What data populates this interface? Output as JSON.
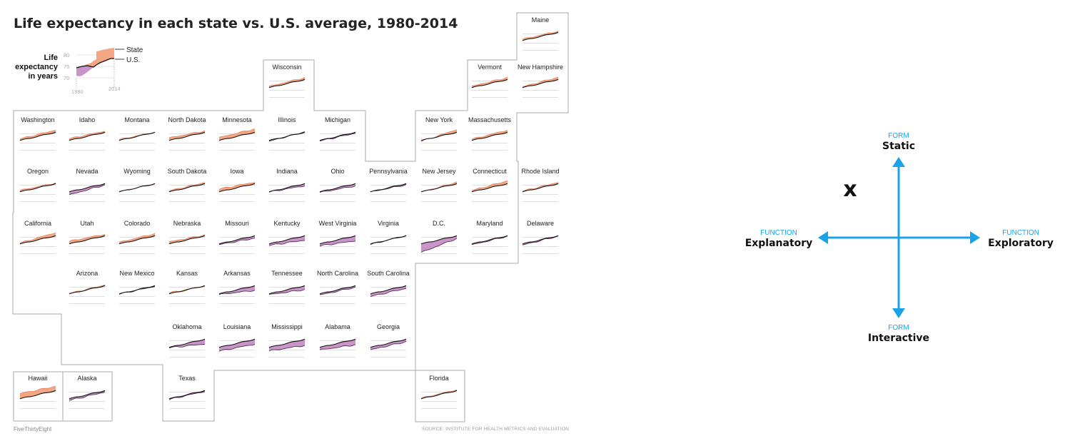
{
  "chart_data": {
    "type": "line",
    "title": "Life expectancy in each state vs. U.S. average, 1980-2014",
    "legend": {
      "ylabel": [
        "Life",
        "expectancy",
        "in years"
      ],
      "yticks": [
        "80",
        "75",
        "70"
      ],
      "xticks": [
        "1980",
        "2014"
      ],
      "series": [
        "State",
        "U.S."
      ]
    },
    "x_range": [
      1980,
      2014
    ],
    "us_average": [
      73.7,
      78.9
    ],
    "states": [
      {
        "name": "Maine",
        "diff": [
          0.8,
          0.8
        ]
      },
      {
        "name": "Wisconsin",
        "diff": [
          0.8,
          1.2
        ]
      },
      {
        "name": "Vermont",
        "diff": [
          0.9,
          1.2
        ]
      },
      {
        "name": "New Hampshire",
        "diff": [
          0.6,
          1.4
        ]
      },
      {
        "name": "Washington",
        "diff": [
          1.0,
          1.4
        ]
      },
      {
        "name": "Idaho",
        "diff": [
          1.1,
          0.8
        ]
      },
      {
        "name": "Montana",
        "diff": [
          0.6,
          0.1
        ]
      },
      {
        "name": "North Dakota",
        "diff": [
          1.6,
          0.9
        ]
      },
      {
        "name": "Minnesota",
        "diff": [
          1.9,
          2.1
        ]
      },
      {
        "name": "Illinois",
        "diff": [
          -0.5,
          0.3
        ]
      },
      {
        "name": "Michigan",
        "diff": [
          -0.3,
          -0.6
        ]
      },
      {
        "name": "New York",
        "diff": [
          -0.6,
          1.8
        ]
      },
      {
        "name": "Massachusetts",
        "diff": [
          0.8,
          1.4
        ]
      },
      {
        "name": "Oregon",
        "diff": [
          0.9,
          0.5
        ]
      },
      {
        "name": "Nevada",
        "diff": [
          -1.9,
          -0.8
        ]
      },
      {
        "name": "Wyoming",
        "diff": [
          0.3,
          -0.3
        ]
      },
      {
        "name": "South Dakota",
        "diff": [
          0.7,
          0.8
        ]
      },
      {
        "name": "Iowa",
        "diff": [
          1.8,
          1.0
        ]
      },
      {
        "name": "Indiana",
        "diff": [
          -0.1,
          -1.3
        ]
      },
      {
        "name": "Ohio",
        "diff": [
          -0.4,
          -1.4
        ]
      },
      {
        "name": "Pennsylvania",
        "diff": [
          -0.1,
          -0.7
        ]
      },
      {
        "name": "New Jersey",
        "diff": [
          -0.2,
          1.0
        ]
      },
      {
        "name": "Connecticut",
        "diff": [
          0.9,
          1.8
        ]
      },
      {
        "name": "Rhode Island",
        "diff": [
          0.5,
          0.9
        ]
      },
      {
        "name": "California",
        "diff": [
          0.6,
          2.0
        ]
      },
      {
        "name": "Utah",
        "diff": [
          1.7,
          1.0
        ]
      },
      {
        "name": "Colorado",
        "diff": [
          1.0,
          1.4
        ]
      },
      {
        "name": "Nebraska",
        "diff": [
          1.3,
          0.5
        ]
      },
      {
        "name": "Missouri",
        "diff": [
          -0.4,
          -1.5
        ]
      },
      {
        "name": "Kentucky",
        "diff": [
          -0.9,
          -2.8
        ]
      },
      {
        "name": "West Virginia",
        "diff": [
          -1.2,
          -3.2
        ]
      },
      {
        "name": "Virginia",
        "diff": [
          -0.4,
          0.3
        ]
      },
      {
        "name": "D.C.",
        "diff": [
          -5.4,
          -1.7
        ]
      },
      {
        "name": "Maryland",
        "diff": [
          -0.6,
          -0.3
        ]
      },
      {
        "name": "Delaware",
        "diff": [
          -0.7,
          -0.3
        ]
      },
      {
        "name": "Arizona",
        "diff": [
          0.3,
          0.5
        ]
      },
      {
        "name": "New Mexico",
        "diff": [
          -0.1,
          -0.4
        ]
      },
      {
        "name": "Kansas",
        "diff": [
          0.7,
          -0.2
        ]
      },
      {
        "name": "Arkansas",
        "diff": [
          -0.4,
          -2.9
        ]
      },
      {
        "name": "Tennessee",
        "diff": [
          -0.5,
          -2.5
        ]
      },
      {
        "name": "North Carolina",
        "diff": [
          -0.7,
          -1.0
        ]
      },
      {
        "name": "South Carolina",
        "diff": [
          -1.6,
          -1.7
        ]
      },
      {
        "name": "Oklahoma",
        "diff": [
          -0.2,
          -3.0
        ]
      },
      {
        "name": "Louisiana",
        "diff": [
          -2.3,
          -3.1
        ]
      },
      {
        "name": "Mississippi",
        "diff": [
          -2.2,
          -3.9
        ]
      },
      {
        "name": "Alabama",
        "diff": [
          -1.6,
          -3.5
        ]
      },
      {
        "name": "Georgia",
        "diff": [
          -1.5,
          -1.6
        ]
      },
      {
        "name": "Hawaii",
        "diff": [
          3.3,
          2.7
        ]
      },
      {
        "name": "Alaska",
        "diff": [
          -1.0,
          -0.9
        ]
      },
      {
        "name": "Texas",
        "diff": [
          -0.4,
          -0.5
        ]
      },
      {
        "name": "Florida",
        "diff": [
          0.4,
          0.6
        ]
      }
    ],
    "colors": {
      "above": "#f4a582",
      "below": "#c994c7",
      "us_line": "#111111",
      "state_line": "#4a1f4a",
      "border": "#aaaaaa",
      "grid": "#cccccc"
    }
  },
  "footer": {
    "brand": "FiveThirtyEight",
    "source": "SOURCE: INSTITUTE FOR HEALTH METRICS AND EVALUATION"
  },
  "diagram": {
    "top_small": "FORM",
    "top_big": "Static",
    "bottom_small": "FORM",
    "bottom_big": "Interactive",
    "left_small": "FUNCTION",
    "left_big": "Explanatory",
    "right_small": "FUNCTION",
    "right_big": "Exploratory",
    "marker": "x",
    "color": "#1ba3e8"
  }
}
